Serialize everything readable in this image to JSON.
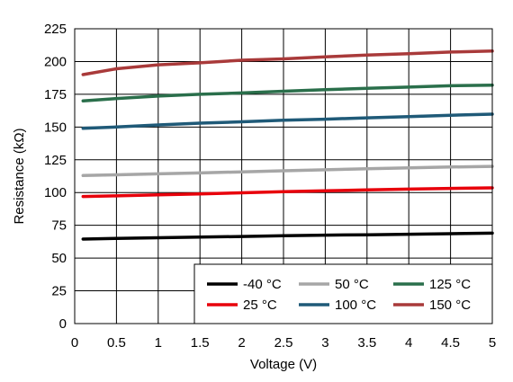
{
  "chart_data": {
    "type": "line",
    "xlabel": "Voltage (V)",
    "ylabel": "Resistance (kΩ)",
    "xlim": [
      0,
      5
    ],
    "ylim": [
      0,
      225
    ],
    "xticks": [
      0,
      0.5,
      1,
      1.5,
      2,
      2.5,
      3,
      3.5,
      4,
      4.5,
      5
    ],
    "yticks": [
      0,
      25,
      50,
      75,
      100,
      125,
      150,
      175,
      200,
      225
    ],
    "xtick_labels": [
      "0",
      "0.5",
      "1",
      "1.5",
      "2",
      "2.5",
      "3",
      "3.5",
      "4",
      "4.5",
      "5"
    ],
    "ytick_labels": [
      "0",
      "25",
      "50",
      "75",
      "100",
      "125",
      "150",
      "175",
      "200",
      "225"
    ],
    "grid": true,
    "legend_position": "bottom-right",
    "x": [
      0.1,
      0.5,
      1,
      1.5,
      2,
      2.5,
      3,
      3.5,
      4,
      4.5,
      5
    ],
    "series": [
      {
        "name": "-40 °C",
        "color": "#000000",
        "values": [
          64.5,
          65.0,
          65.5,
          66.0,
          66.5,
          67.0,
          67.5,
          67.8,
          68.2,
          68.6,
          69.0
        ]
      },
      {
        "name": "25 °C",
        "color": "#e8000b",
        "values": [
          97.0,
          97.5,
          98.3,
          99.0,
          99.8,
          100.6,
          101.3,
          102.0,
          102.6,
          103.2,
          103.6
        ]
      },
      {
        "name": "50 °C",
        "color": "#a6a6a6",
        "values": [
          113.0,
          113.5,
          114.3,
          115.0,
          115.8,
          116.6,
          117.4,
          118.1,
          118.8,
          119.5,
          120.0
        ]
      },
      {
        "name": "100 °C",
        "color": "#1f5a78",
        "values": [
          149.0,
          150.0,
          151.6,
          153.0,
          154.0,
          155.2,
          156.0,
          157.0,
          158.0,
          159.0,
          159.8
        ]
      },
      {
        "name": "125 °C",
        "color": "#2a6f4b",
        "values": [
          170.0,
          171.8,
          173.6,
          175.0,
          176.0,
          177.3,
          178.5,
          179.5,
          180.5,
          181.5,
          182.0
        ]
      },
      {
        "name": "150 °C",
        "color": "#a93a3a",
        "values": [
          190.0,
          194.5,
          197.5,
          199.0,
          201.0,
          202.0,
          203.5,
          205.0,
          206.0,
          207.2,
          208.0
        ]
      }
    ]
  }
}
